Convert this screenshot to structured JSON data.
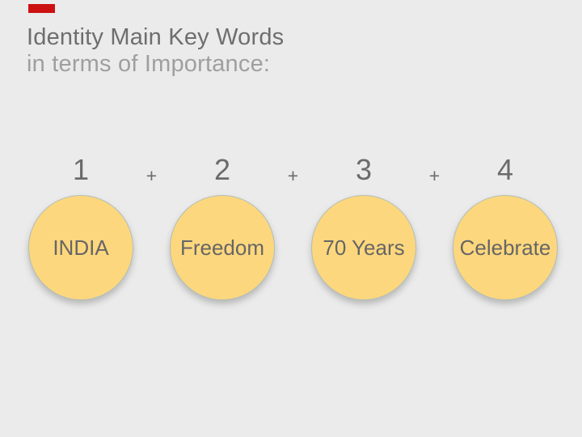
{
  "slide": {
    "title": "Identity Main Key Words",
    "subtitle": "in terms of Importance:",
    "separator": "+",
    "items": [
      {
        "number": "1",
        "label": "INDIA"
      },
      {
        "number": "2",
        "label": "Freedom"
      },
      {
        "number": "3",
        "label": "70 Years"
      },
      {
        "number": "4",
        "label": "Celebrate"
      }
    ],
    "colors": {
      "background": "#ebebeb",
      "circle_fill": "#fdd77d",
      "circle_border": "#b3bfb6",
      "title_text": "#6e6e6e",
      "subtitle_text": "#9f9f9f",
      "number_text": "#6b6b6b",
      "circle_text": "#666666",
      "marker_red": "#cc1111"
    }
  }
}
